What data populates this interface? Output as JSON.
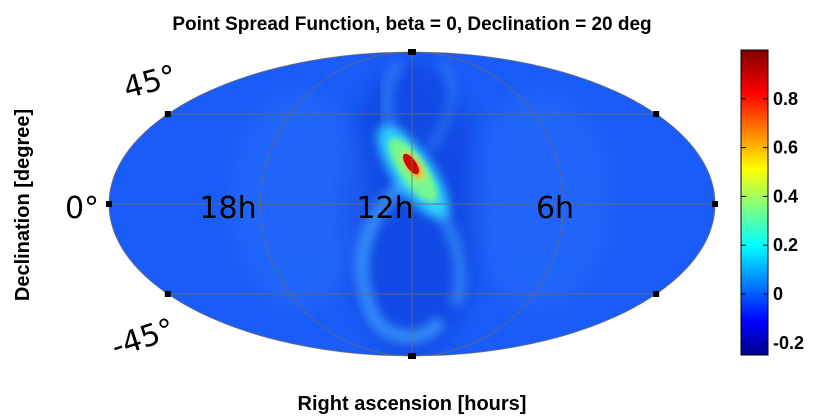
{
  "chart_data": {
    "type": "heatmap",
    "projection": "mollweide",
    "title": "Point Spread Function, beta = 0, Declination = 20 deg",
    "xlabel": "Right ascension [hours]",
    "ylabel": "Declination [degree]",
    "meridian_labels": [
      "18h",
      "12h",
      "6h"
    ],
    "parallel_labels": [
      "45°",
      "0°",
      "-45°"
    ],
    "meridians_hours": [
      24,
      18,
      12,
      6,
      0
    ],
    "parallels_deg": [
      45,
      0,
      -45
    ],
    "source": {
      "ra_hours": 12,
      "dec_deg": 20,
      "peak_value": 1.0
    },
    "background_value": -0.02,
    "colorbar": {
      "colormap": "jet",
      "range": [
        -0.25,
        1.0
      ],
      "ticks": [
        -0.2,
        0,
        0.2,
        0.4,
        0.6,
        0.8
      ],
      "tick_labels": [
        "-0.2",
        "0",
        "0.2",
        "0.4",
        "0.6",
        "0.8"
      ]
    },
    "grid": true
  }
}
